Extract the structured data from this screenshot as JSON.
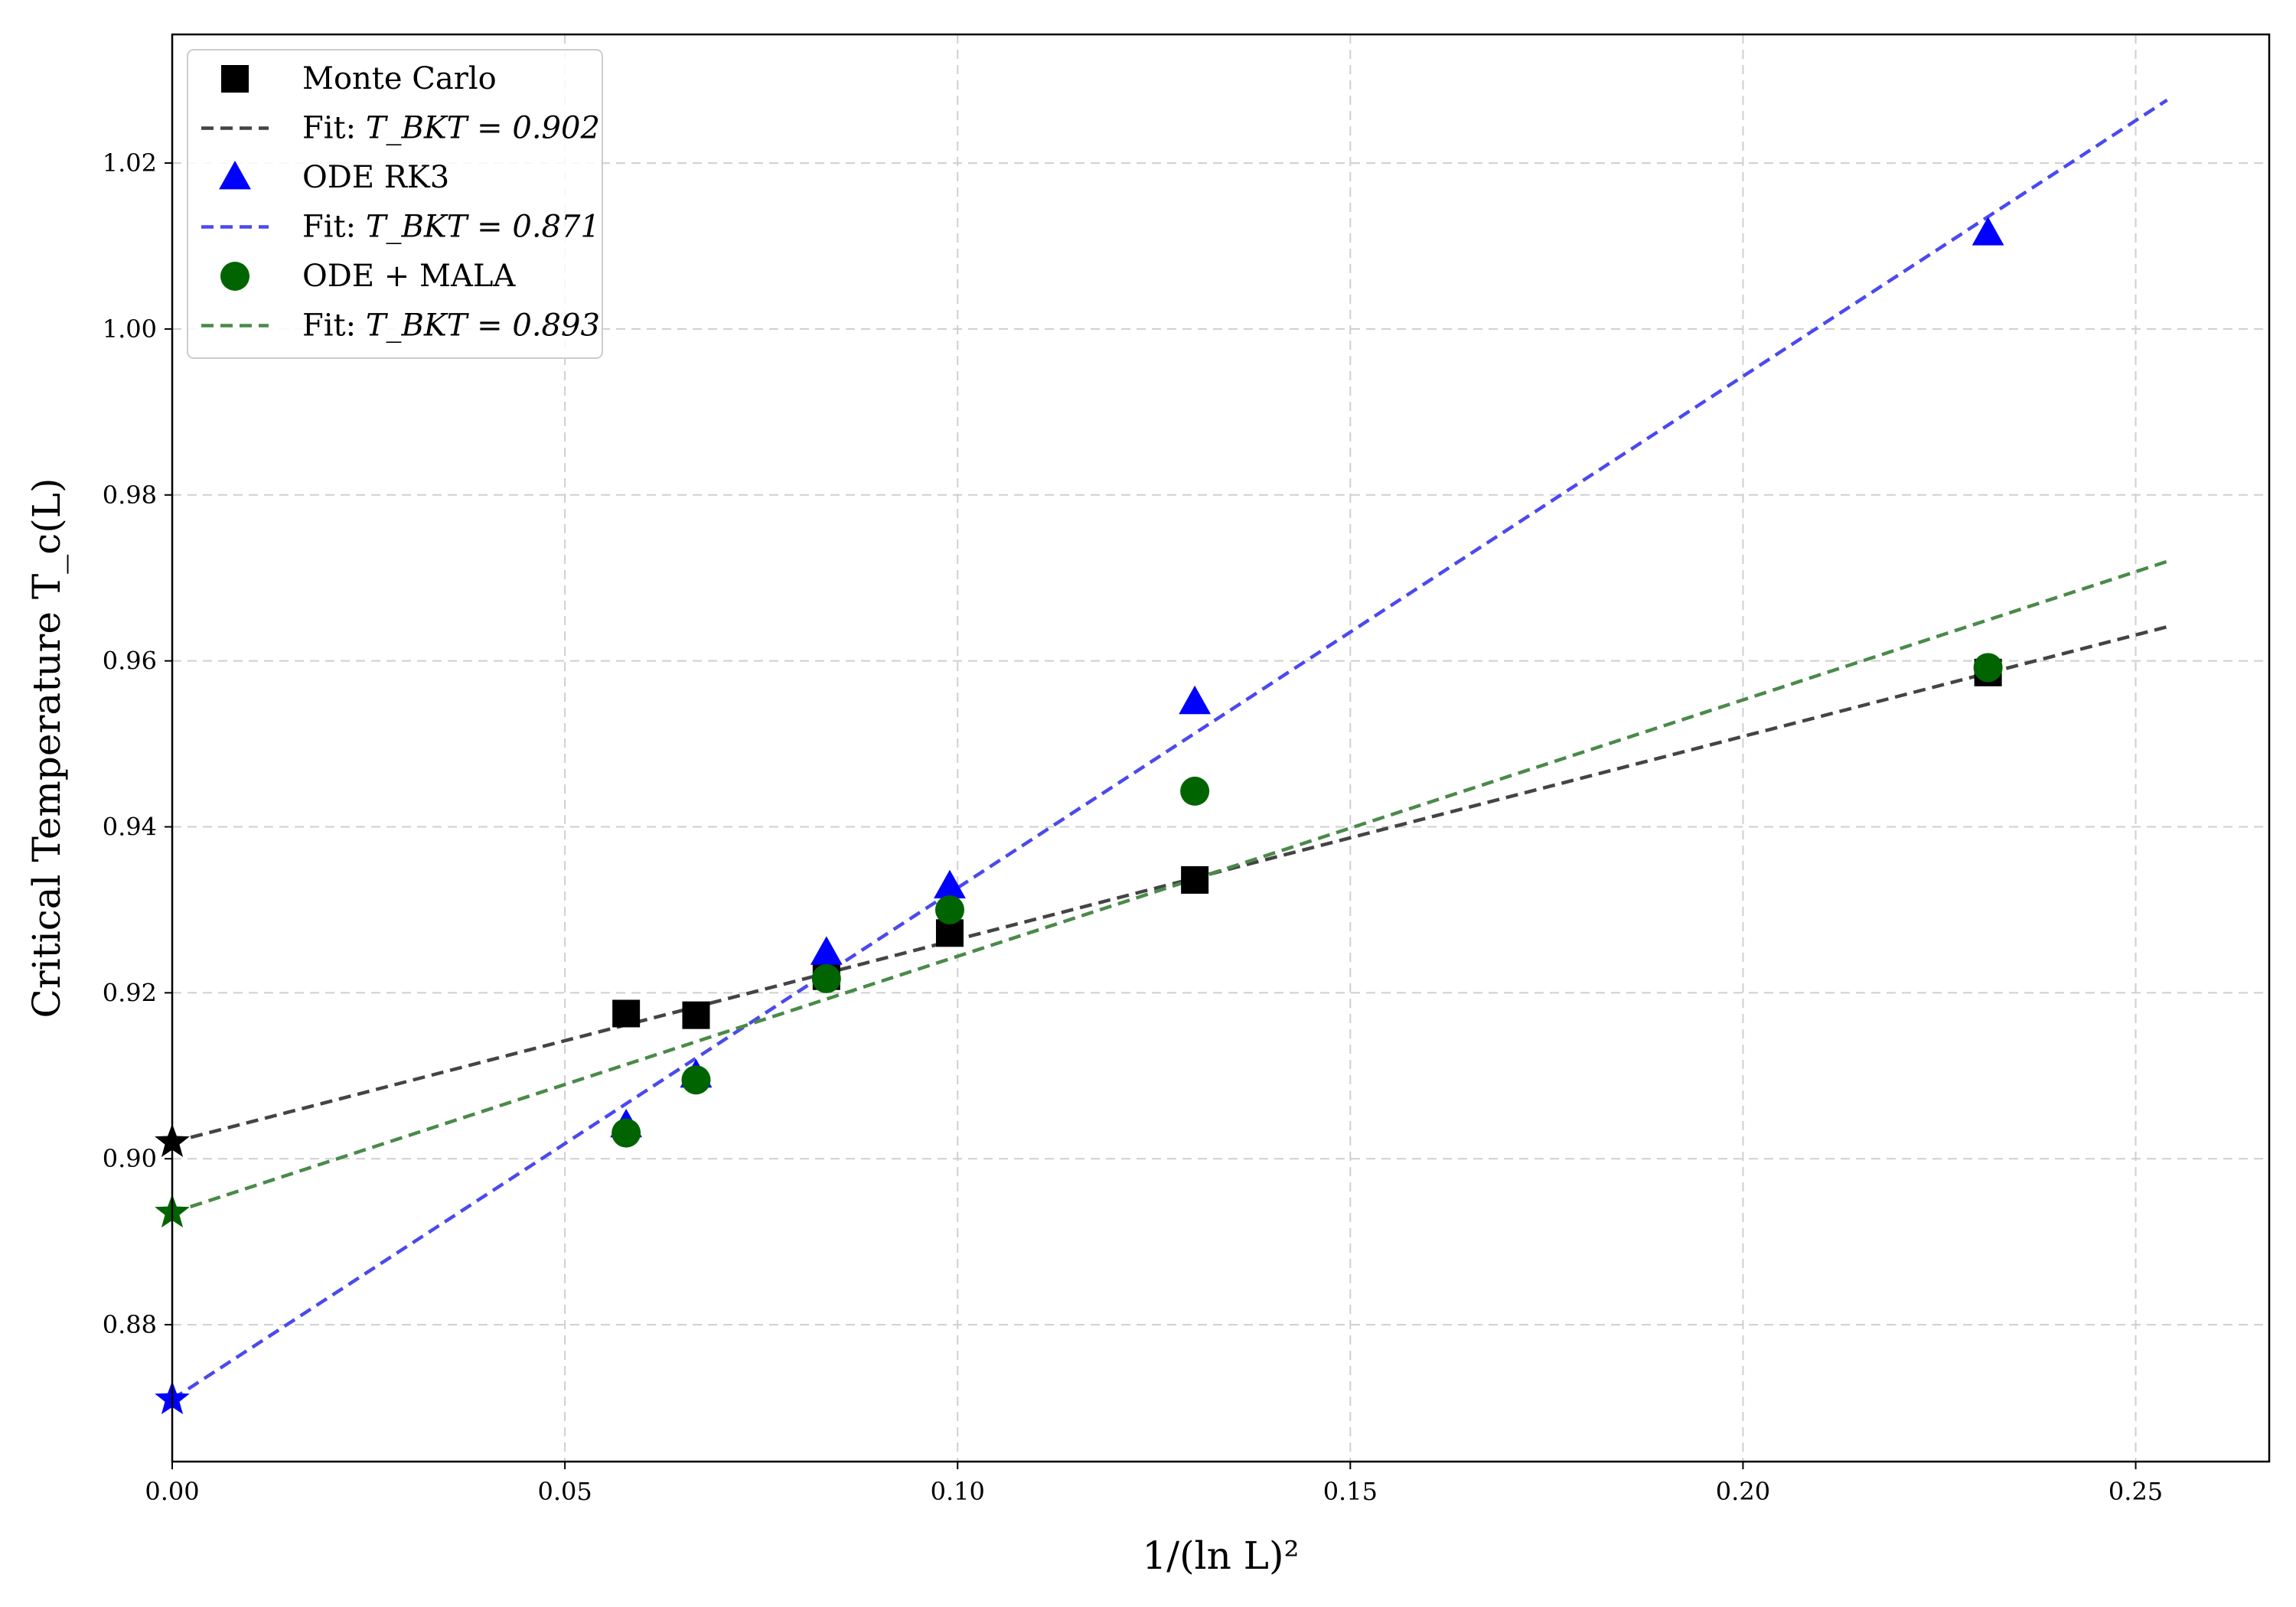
{
  "chart_data": {
    "type": "scatter",
    "title": "",
    "xlabel": "1/(ln L)²",
    "ylabel": "Critical Temperature T_c(L)",
    "xlim": [
      0.0,
      0.267
    ],
    "ylim": [
      0.8635,
      1.0355
    ],
    "xticks": [
      0.0,
      0.05,
      0.1,
      0.15,
      0.2,
      0.25
    ],
    "xtick_labels": [
      "0.00",
      "0.05",
      "0.10",
      "0.15",
      "0.20",
      "0.25"
    ],
    "yticks": [
      0.88,
      0.9,
      0.92,
      0.94,
      0.96,
      0.98,
      1.0,
      1.02
    ],
    "ytick_labels": [
      "0.88",
      "0.90",
      "0.92",
      "0.94",
      "0.96",
      "0.98",
      "1.00",
      "1.02"
    ],
    "grid": true,
    "legend_position": "top-left",
    "series": [
      {
        "name": "Monte Carlo",
        "marker": "square",
        "color": "#000000",
        "x": [
          0.0578,
          0.0667,
          0.0833,
          0.099,
          0.1302,
          0.2312
        ],
        "y": [
          0.9175,
          0.9173,
          0.922,
          0.9272,
          0.9336,
          0.9586
        ],
        "fit": {
          "label": "Fit: ",
          "label_math": "T_BKT = 0.902",
          "intercept": 0.902,
          "slope": 0.2445,
          "x_range": [
            0.0,
            0.254
          ],
          "color": "#444444"
        }
      },
      {
        "name": "ODE RK3",
        "marker": "triangle",
        "color": "#0000ff",
        "x": [
          0.0578,
          0.0667,
          0.0833,
          0.099,
          0.1302,
          0.2312
        ],
        "y": [
          0.904,
          0.91,
          0.9248,
          0.9328,
          0.955,
          1.0115
        ],
        "fit": {
          "label": "Fit: ",
          "label_math": "T_BKT = 0.871",
          "intercept": 0.871,
          "slope": 0.6165,
          "x_range": [
            0.0,
            0.254
          ],
          "color": "#4a4aee"
        }
      },
      {
        "name": "ODE + MALA",
        "marker": "circle",
        "color": "#006400",
        "x": [
          0.0578,
          0.0667,
          0.0833,
          0.099,
          0.1302,
          0.2312
        ],
        "y": [
          0.9031,
          0.9095,
          0.9217,
          0.93,
          0.9443,
          0.9592
        ],
        "fit": {
          "label": "Fit: ",
          "label_math": "T_BKT = 0.893",
          "intercept": 0.8935,
          "slope": 0.309,
          "x_range": [
            0.0,
            0.254
          ],
          "color": "#4a8a4a"
        }
      }
    ],
    "extrapolated_points": [
      {
        "series": "Monte Carlo",
        "x": 0.0,
        "y": 0.902,
        "marker": "star",
        "color": "#000000"
      },
      {
        "series": "ODE RK3",
        "x": 0.0,
        "y": 0.871,
        "marker": "star",
        "color": "#0000ff"
      },
      {
        "series": "ODE + MALA",
        "x": 0.0,
        "y": 0.8935,
        "marker": "star",
        "color": "#006400"
      }
    ]
  }
}
